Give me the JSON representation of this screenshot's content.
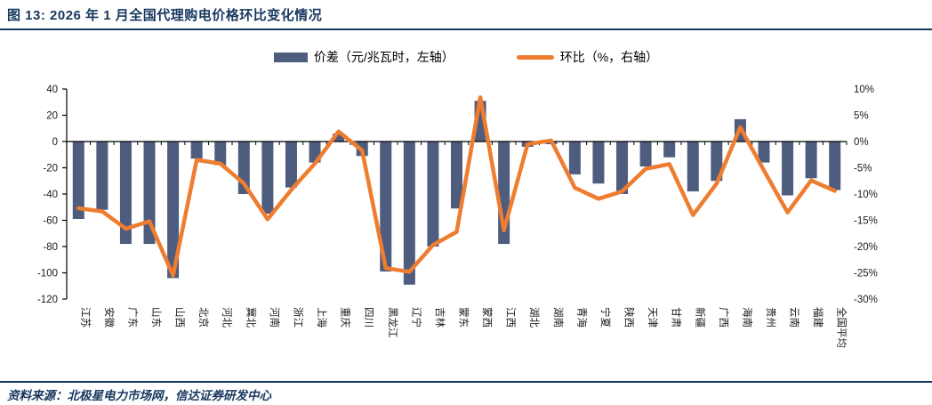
{
  "header": {
    "title": "图 13: 2026 年 1 月全国代理购电价格环比变化情况"
  },
  "legend": {
    "bar_label": "价差（元/兆瓦时，左轴）",
    "line_label": "环比（%，右轴）"
  },
  "footer": {
    "source": "资料来源：北极星电力市场网，信达证券研发中心"
  },
  "colors": {
    "navy": "#17375E",
    "bar": "#4E5C7E",
    "line": "#EE7D30",
    "axis": "#000000",
    "tick_label": "#1a1a1a"
  },
  "chart_data": {
    "type": "bar",
    "subtype": "bar+line combo, dual axis",
    "title": "2026 年 1 月全国代理购电价格环比变化情况",
    "categories": [
      "江苏",
      "安徽",
      "广东",
      "山东",
      "山西",
      "北京",
      "河北",
      "冀北",
      "河南",
      "浙江",
      "上海",
      "重庆",
      "四川",
      "黑龙江",
      "辽宁",
      "吉林",
      "蒙东",
      "蒙西",
      "江西",
      "湖北",
      "湖南",
      "青海",
      "宁夏",
      "陕西",
      "天津",
      "甘肃",
      "新疆",
      "广西",
      "海南",
      "贵州",
      "云南",
      "福建",
      "全国平均"
    ],
    "series": [
      {
        "name": "价差（元/兆瓦时，左轴）",
        "type": "bar",
        "axis": "left",
        "values": [
          -59,
          -52,
          -78,
          -78,
          -104,
          -13,
          -18,
          -40,
          -55,
          -35,
          -16,
          6,
          -11,
          -99,
          -109,
          -80,
          -51,
          31,
          -78,
          -4,
          -2,
          -25,
          -32,
          -40,
          -19,
          -12,
          -38,
          -30,
          17,
          -16,
          -41,
          -28,
          -37
        ]
      },
      {
        "name": "环比（%，右轴）",
        "type": "line",
        "axis": "right",
        "values": [
          -12.7,
          -13.3,
          -16.6,
          -15.2,
          -25.5,
          -3.5,
          -4.2,
          -8,
          -14.8,
          -9.2,
          -4.2,
          1.9,
          -1.7,
          -24.1,
          -24.8,
          -19.7,
          -17.2,
          8.4,
          -16.9,
          -0.5,
          0.2,
          -8.8,
          -10.9,
          -9.5,
          -5.2,
          -4.3,
          -14,
          -8,
          2.7,
          -5.5,
          -13.5,
          -7.4,
          -9.4
        ]
      }
    ],
    "left_axis": {
      "label": "价差（元/兆瓦时）",
      "min": -120,
      "max": 40,
      "ticks": [
        "40",
        "20",
        "0",
        "-20",
        "-40",
        "-60",
        "-80",
        "-100",
        "-120"
      ]
    },
    "right_axis": {
      "label": "环比（%）",
      "min": -30,
      "max": 10,
      "ticks": [
        "10%",
        "5%",
        "0%",
        "-5%",
        "-10%",
        "-15%",
        "-20%",
        "-25%",
        "-30%"
      ]
    },
    "grid": false,
    "legend_position": "top-center"
  }
}
